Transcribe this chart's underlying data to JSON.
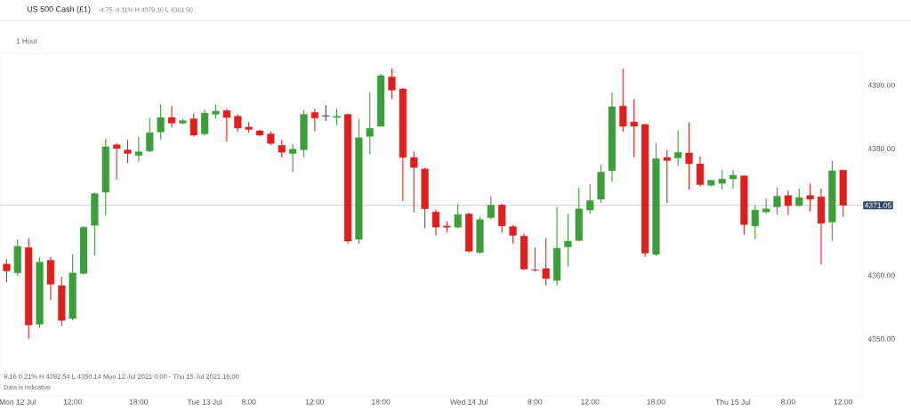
{
  "chart_data": {
    "type": "candlestick",
    "title": "US 500 Cash (£1)",
    "subtitle": "-4.75 -0.11% H 4379.10 L 4361.50",
    "annotations": [
      "1 Hour",
      "9.16   0.21%   H 4392.54   L 4350.14   Mon 12 Jul 2021 0:00 - Thu 15 Jul 2021 16:00",
      "Data is indicative"
    ],
    "categories": [
      null,
      "Mon 12 Jul",
      null,
      null,
      null,
      null,
      "12:00",
      null,
      null,
      null,
      null,
      null,
      "18:00",
      null,
      null,
      null,
      null,
      null,
      "Tue 13 Jul",
      null,
      null,
      null,
      "8:00",
      null,
      null,
      null,
      null,
      null,
      "12:00",
      null,
      null,
      null,
      null,
      null,
      "18:00",
      null,
      null,
      null,
      null,
      null,
      null,
      null,
      "Wed 14 Jul",
      null,
      null,
      null,
      null,
      null,
      "8:00",
      null,
      null,
      null,
      null,
      "12:00",
      null,
      null,
      null,
      null,
      null,
      "18:00",
      null,
      null,
      null,
      null,
      null,
      null,
      "Thu 15 Jul",
      null,
      null,
      null,
      null,
      "8:00",
      null,
      null,
      null,
      null,
      "12:00"
    ],
    "ohlc": [
      [
        4361.8,
        4362.5,
        4359.0,
        4360.7
      ],
      [
        4360.4,
        4365.6,
        4360.0,
        4364.6
      ],
      [
        4364.4,
        4365.8,
        4350.1,
        4352.2
      ],
      [
        4352.3,
        4362.8,
        4351.8,
        4362.1
      ],
      [
        4362.4,
        4362.8,
        4356.2,
        4358.6
      ],
      [
        4358.4,
        4359.7,
        4352.1,
        4352.9
      ],
      [
        4353.2,
        4363.2,
        4353.0,
        4360.4
      ],
      [
        4360.3,
        4367.7,
        4360.2,
        4367.6
      ],
      [
        4367.9,
        4373.0,
        4363.2,
        4372.9
      ],
      [
        4373.1,
        4381.5,
        4369.6,
        4380.3
      ],
      [
        4380.6,
        4380.8,
        4375.2,
        4380.0
      ],
      [
        4379.8,
        4381.3,
        4377.8,
        4379.2
      ],
      [
        4378.9,
        4381.8,
        4378.0,
        4379.5
      ],
      [
        4379.6,
        4384.8,
        4379.5,
        4382.5
      ],
      [
        4382.6,
        4386.9,
        4381.5,
        4384.9
      ],
      [
        4384.9,
        4386.6,
        4383.4,
        4384.0
      ],
      [
        4384.0,
        4384.6,
        4383.9,
        4384.4
      ],
      [
        4384.7,
        4385.5,
        4382.0,
        4382.1
      ],
      [
        4382.3,
        4386.0,
        4382.1,
        4385.6
      ],
      [
        4385.4,
        4386.9,
        4384.8,
        4385.9
      ],
      [
        4386.0,
        4386.2,
        4381.2,
        4384.9
      ],
      [
        4385.1,
        4385.3,
        4382.7,
        4383.2
      ],
      [
        4383.4,
        4384.1,
        4382.6,
        4383.0
      ],
      [
        4382.8,
        4382.9,
        4382.0,
        4382.1
      ],
      [
        4382.3,
        4382.6,
        4380.6,
        4380.8
      ],
      [
        4380.5,
        4381.3,
        4378.7,
        4379.4
      ],
      [
        4379.2,
        4380.6,
        4376.4,
        4379.9
      ],
      [
        4379.8,
        4386.0,
        4378.7,
        4385.4
      ],
      [
        4385.7,
        4386.2,
        4382.8,
        4384.8
      ],
      [
        4385.2,
        4386.7,
        4384.4,
        4385.1
      ],
      [
        4384.9,
        4386.2,
        4383.7,
        4385.1
      ],
      [
        4385.4,
        4385.5,
        4365.1,
        4365.4
      ],
      [
        4365.7,
        4384.6,
        4365.1,
        4381.7
      ],
      [
        4381.9,
        4388.8,
        4379.2,
        4383.2
      ],
      [
        4383.5,
        4391.7,
        4383.5,
        4391.5
      ],
      [
        4391.3,
        4392.54,
        4387.9,
        4389.2
      ],
      [
        4389.4,
        4389.5,
        4371.8,
        4378.6
      ],
      [
        4378.6,
        4379.5,
        4370.0,
        4377.0
      ],
      [
        4376.8,
        4376.9,
        4367.5,
        4370.5
      ],
      [
        4370.0,
        4370.3,
        4366.4,
        4367.6
      ],
      [
        4367.8,
        4368.4,
        4366.8,
        4367.6
      ],
      [
        4367.6,
        4371.2,
        4367.5,
        4369.6
      ],
      [
        4369.7,
        4369.8,
        4363.7,
        4363.8
      ],
      [
        4363.6,
        4369.1,
        4363.5,
        4368.8
      ],
      [
        4369.1,
        4372.4,
        4368.9,
        4371.1
      ],
      [
        4371.1,
        4371.2,
        4366.8,
        4367.8
      ],
      [
        4367.7,
        4367.9,
        4365.1,
        4366.3
      ],
      [
        4366.2,
        4366.5,
        4360.9,
        4361.0
      ],
      [
        4360.9,
        4364.3,
        4360.7,
        4360.8
      ],
      [
        4361.1,
        4365.8,
        4358.5,
        4359.5
      ],
      [
        4359.2,
        4370.7,
        4358.5,
        4364.3
      ],
      [
        4364.5,
        4369.6,
        4361.5,
        4365.4
      ],
      [
        4365.5,
        4373.8,
        4365.4,
        4370.5
      ],
      [
        4370.3,
        4374.3,
        4369.8,
        4371.8
      ],
      [
        4372.0,
        4377.4,
        4371.5,
        4376.3
      ],
      [
        4376.5,
        4388.7,
        4374.8,
        4386.6
      ],
      [
        4386.7,
        4392.5,
        4382.7,
        4383.5
      ],
      [
        4384.2,
        4387.7,
        4378.7,
        4383.5
      ],
      [
        4383.8,
        4383.8,
        4363.0,
        4363.5
      ],
      [
        4363.3,
        4380.8,
        4363.1,
        4378.4
      ],
      [
        4378.6,
        4379.7,
        4371.5,
        4378.1
      ],
      [
        4378.5,
        4382.8,
        4377.3,
        4379.4
      ],
      [
        4379.3,
        4384.0,
        4373.6,
        4377.6
      ],
      [
        4377.6,
        4378.7,
        4374.1,
        4374.3
      ],
      [
        4374.2,
        4375.0,
        4374.1,
        4375.0
      ],
      [
        4374.5,
        4376.5,
        4373.6,
        4375.2
      ],
      [
        4375.2,
        4376.5,
        4373.8,
        4375.8
      ],
      [
        4375.7,
        4375.7,
        4366.5,
        4368.0
      ],
      [
        4367.8,
        4371.0,
        4365.8,
        4370.3
      ],
      [
        4370.0,
        4372.1,
        4369.8,
        4370.5
      ],
      [
        4370.8,
        4373.8,
        4369.7,
        4372.5
      ],
      [
        4372.6,
        4373.3,
        4369.6,
        4371.0
      ],
      [
        4371.0,
        4373.6,
        4371.0,
        4372.3
      ],
      [
        4372.6,
        4374.3,
        4370.2,
        4372.0
      ],
      [
        4372.4,
        4373.6,
        4361.8,
        4368.2
      ],
      [
        4368.4,
        4378.0,
        4365.5,
        4376.5
      ],
      [
        4376.6,
        4376.6,
        4369.3,
        4371.05
      ]
    ],
    "colors": [
      "#e0201e",
      "#3c9f3c",
      "#e0201e",
      "#3c9f3c",
      "#e0201e",
      "#e0201e",
      "#3c9f3c",
      "#3c9f3c",
      "#3c9f3c",
      "#3c9f3c",
      "#e0201e",
      "#e0201e",
      "#3c9f3c",
      "#3c9f3c",
      "#3c9f3c",
      "#e0201e",
      "#3c9f3c",
      "#e0201e",
      "#3c9f3c",
      "#3c9f3c",
      "#e0201e",
      "#e0201e",
      "#e0201e",
      "#e0201e",
      "#e0201e",
      "#e0201e",
      "#3c9f3c",
      "#3c9f3c",
      "#e0201e",
      "#404040",
      "#3c9f3c",
      "#e0201e",
      "#3c9f3c",
      "#3c9f3c",
      "#3c9f3c",
      "#e0201e",
      "#e0201e",
      "#e0201e",
      "#e0201e",
      "#e0201e",
      "#e0201e",
      "#3c9f3c",
      "#e0201e",
      "#3c9f3c",
      "#3c9f3c",
      "#e0201e",
      "#e0201e",
      "#e0201e",
      "#e0201e",
      "#e0201e",
      "#3c9f3c",
      "#3c9f3c",
      "#3c9f3c",
      "#3c9f3c",
      "#3c9f3c",
      "#3c9f3c",
      "#e0201e",
      "#e0201e",
      "#e0201e",
      "#3c9f3c",
      "#e0201e",
      "#3c9f3c",
      "#e0201e",
      "#e0201e",
      "#3c9f3c",
      "#3c9f3c",
      "#3c9f3c",
      "#e0201e",
      "#3c9f3c",
      "#3c9f3c",
      "#3c9f3c",
      "#e0201e",
      "#3c9f3c",
      "#e0201e",
      "#e0201e",
      "#3c9f3c",
      "#e0201e"
    ],
    "ylim": [
      4341,
      4395
    ],
    "yticks": [
      {
        "value": 4350,
        "label": "4350.00"
      },
      {
        "value": 4360,
        "label": "4360.00"
      },
      {
        "value": 4380,
        "label": "4380.00"
      },
      {
        "value": 4390,
        "label": "4390.00"
      }
    ],
    "ref_lines": [
      {
        "axis": "y",
        "value": 4371.05,
        "label": "4371.05",
        "color": "#a0a0a0"
      }
    ]
  }
}
